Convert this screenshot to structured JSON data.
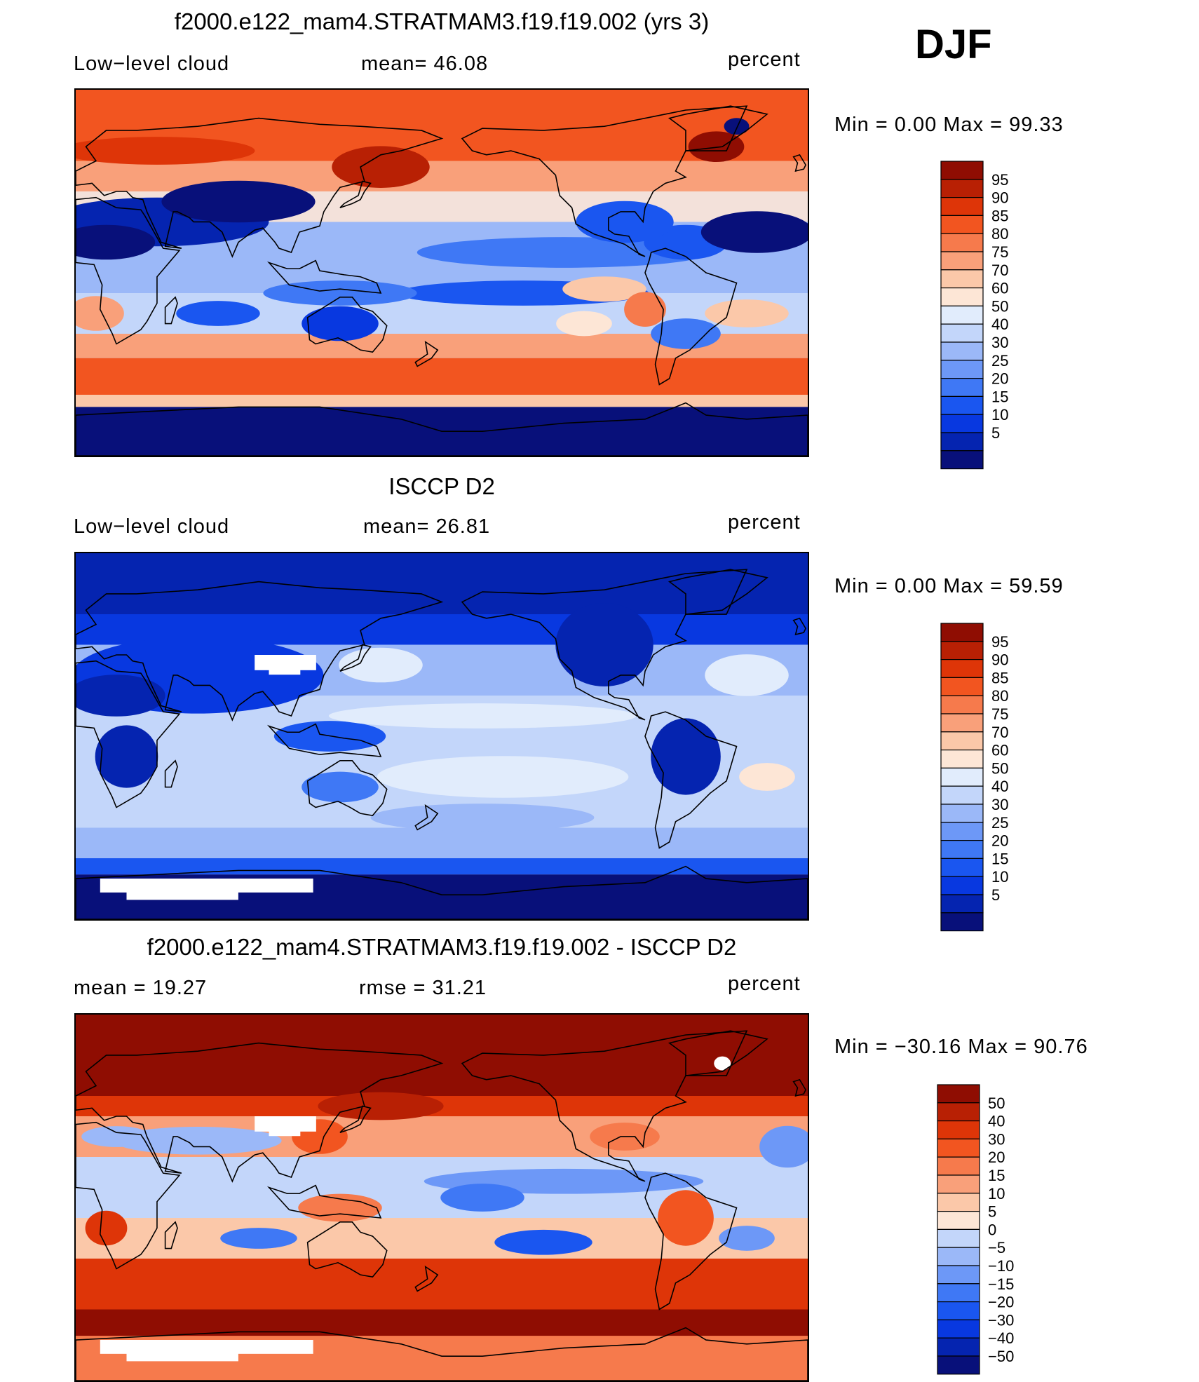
{
  "season": "DJF",
  "palettes": {
    "abs": [
      "#08107a",
      "#0524b0",
      "#0838e0",
      "#1a56f0",
      "#3f78f5",
      "#6d98f7",
      "#9bb8f8",
      "#c3d6fa",
      "#e1ecfc",
      "#fde6d6",
      "#fbc8a9",
      "#f9a07a",
      "#f67a4c",
      "#f25520",
      "#de3508",
      "#b82004",
      "#8f0d02"
    ],
    "diff": [
      "#08107a",
      "#0524b0",
      "#0838e0",
      "#1a56f0",
      "#3f78f5",
      "#6d98f7",
      "#9bb8f8",
      "#c3d6fa",
      "#fde6d6",
      "#fbc8a9",
      "#f9a07a",
      "#f67a4c",
      "#f25520",
      "#de3508",
      "#b82004",
      "#8f0d02"
    ]
  },
  "chart_data": [
    {
      "type": "heatmap",
      "title": "f2000.e122_mam4.STRATMAM3.f19.f19.002 (yrs 3)",
      "variable": "Low−level cloud",
      "mean_text": "mean=   46.08",
      "units": "percent",
      "minmax_text": "Min  =      0.00  Max  =     99.33",
      "levels": [
        "95",
        "90",
        "85",
        "80",
        "75",
        "70",
        "60",
        "50",
        "40",
        "30",
        "25",
        "20",
        "15",
        "10",
        "5"
      ],
      "mean": 46.08,
      "min": 0.0,
      "max": 99.33
    },
    {
      "type": "heatmap",
      "title": "ISCCP D2",
      "variable": "Low−level cloud",
      "mean_text": "mean=   26.81",
      "units": "percent",
      "minmax_text": "Min  =      0.00  Max  =     59.59",
      "levels": [
        "95",
        "90",
        "85",
        "80",
        "75",
        "70",
        "60",
        "50",
        "40",
        "30",
        "25",
        "20",
        "15",
        "10",
        "5"
      ],
      "mean": 26.81,
      "min": 0.0,
      "max": 59.59
    },
    {
      "type": "heatmap",
      "title": "f2000.e122_mam4.STRATMAM3.f19.f19.002 - ISCCP D2",
      "variable": "mean  =     19.27",
      "mean_text": "rmse  =     31.21",
      "units": "percent",
      "minmax_text": "Min  =  −30.16  Max  =     90.76",
      "levels": [
        "50",
        "40",
        "30",
        "20",
        "15",
        "10",
        "5",
        "0",
        "−5",
        "−10",
        "−15",
        "−20",
        "−30",
        "−40",
        "−50"
      ],
      "mean": 19.27,
      "rmse": 31.21,
      "min": -30.16,
      "max": 90.76
    }
  ]
}
